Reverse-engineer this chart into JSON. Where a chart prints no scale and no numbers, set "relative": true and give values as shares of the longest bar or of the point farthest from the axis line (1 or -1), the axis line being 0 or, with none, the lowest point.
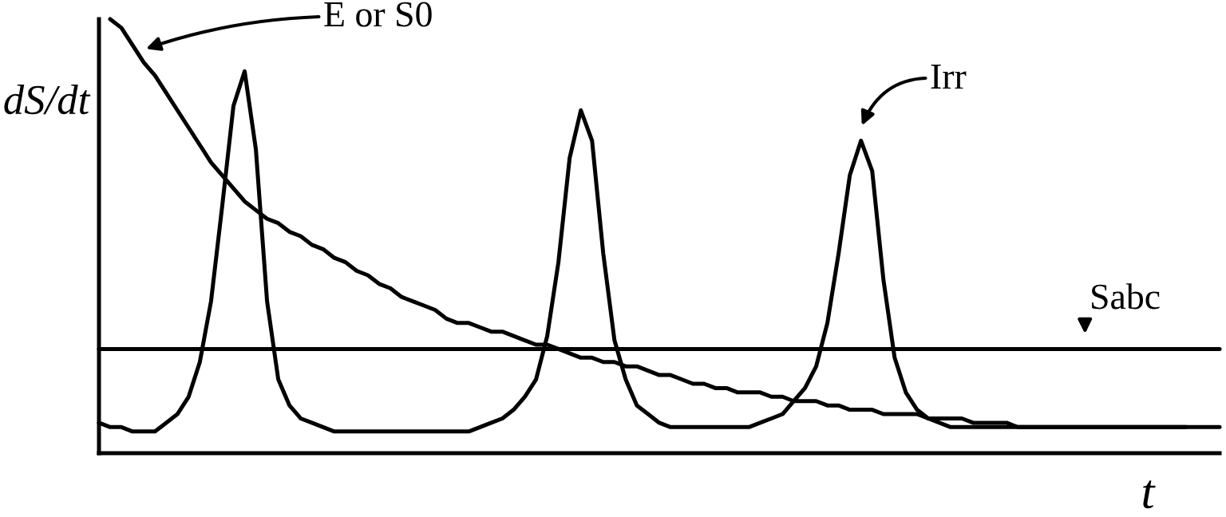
{
  "chart_data": {
    "type": "line",
    "relative": true,
    "ylabel": "dS/dt",
    "xlabel": "t",
    "legend": "top",
    "grid": false,
    "categories": [
      null,
      null,
      null,
      null,
      null,
      null,
      null,
      null,
      null,
      null,
      null,
      null,
      null,
      null,
      null,
      null,
      null,
      null,
      null,
      null,
      null,
      null,
      null,
      null,
      null,
      null,
      null,
      null,
      null,
      null,
      null,
      null,
      null,
      null,
      null,
      null,
      null,
      null,
      null,
      null,
      null,
      null,
      null,
      null,
      null,
      null,
      null,
      null,
      null,
      null,
      null,
      null,
      null,
      null,
      null,
      null,
      null,
      null,
      null,
      null,
      null,
      null,
      null,
      null,
      null,
      null,
      null,
      null,
      null,
      null,
      null,
      null,
      null,
      null,
      null,
      null,
      null,
      null,
      null,
      null,
      null,
      null,
      null,
      null,
      null,
      null,
      null,
      null,
      null,
      null,
      null,
      null,
      null,
      null,
      null,
      null,
      null,
      null,
      null,
      null,
      null
    ],
    "series": [
      {
        "name": "E or S0",
        "color": "#000000",
        "values": [
          null,
          1.0,
          0.98,
          0.94,
          0.9,
          0.87,
          0.83,
          0.79,
          0.75,
          0.71,
          0.67,
          0.64,
          0.61,
          0.58,
          0.56,
          0.54,
          0.53,
          0.51,
          0.5,
          0.48,
          0.47,
          0.45,
          0.44,
          0.42,
          0.41,
          0.39,
          0.38,
          0.36,
          0.35,
          0.34,
          0.33,
          0.31,
          0.3,
          0.3,
          0.29,
          0.28,
          0.28,
          0.27,
          0.26,
          0.25,
          0.25,
          0.24,
          0.23,
          0.22,
          0.22,
          0.21,
          0.21,
          0.2,
          0.2,
          0.19,
          0.18,
          0.18,
          0.17,
          0.16,
          0.16,
          0.15,
          0.15,
          0.14,
          0.14,
          0.14,
          0.13,
          0.13,
          0.12,
          0.12,
          0.12,
          0.11,
          0.11,
          0.1,
          0.1,
          0.1,
          0.09,
          0.09,
          0.09,
          0.09,
          0.08,
          0.08,
          0.08,
          0.08,
          0.07,
          0.07,
          0.07,
          0.07,
          0.06,
          0.06,
          0.06,
          0.06,
          0.06,
          0.06,
          0.06,
          0.06,
          0.06,
          0.06,
          0.06,
          0.06,
          0.06,
          0.06,
          0.06,
          0.06,
          null,
          null,
          null
        ]
      },
      {
        "name": "Irr",
        "color": "#000000",
        "values": [
          0.07,
          0.06,
          0.06,
          0.05,
          0.05,
          0.05,
          0.07,
          0.09,
          0.13,
          0.21,
          0.35,
          0.57,
          0.8,
          0.88,
          0.7,
          0.35,
          0.17,
          0.11,
          0.08,
          0.07,
          0.06,
          0.05,
          0.05,
          0.05,
          0.05,
          0.05,
          0.05,
          0.05,
          0.05,
          0.05,
          0.05,
          0.05,
          0.05,
          0.05,
          0.06,
          0.07,
          0.08,
          0.1,
          0.13,
          0.17,
          0.27,
          0.44,
          0.68,
          0.79,
          0.72,
          0.46,
          0.26,
          0.17,
          0.11,
          0.09,
          0.07,
          0.06,
          0.06,
          0.06,
          0.06,
          0.06,
          0.06,
          0.06,
          0.06,
          0.07,
          0.08,
          0.09,
          0.12,
          0.15,
          0.2,
          0.3,
          0.46,
          0.64,
          0.72,
          0.65,
          0.4,
          0.22,
          0.14,
          0.1,
          0.08,
          0.07,
          0.06,
          0.06,
          0.06,
          0.06,
          0.06,
          0.06,
          0.06,
          0.06,
          0.06,
          0.06,
          0.06,
          0.06,
          0.06,
          0.06,
          0.06,
          0.06,
          0.06,
          0.06,
          0.06,
          0.06,
          0.06,
          0.06,
          0.06,
          0.06,
          0.06
        ]
      },
      {
        "name": "Sabc",
        "color": "#000000",
        "values": [
          0.24,
          0.24,
          0.24,
          0.24,
          0.24,
          0.24,
          0.24,
          0.24,
          0.24,
          0.24,
          0.24,
          0.24,
          0.24,
          0.24,
          0.24,
          0.24,
          0.24,
          0.24,
          0.24,
          0.24,
          0.24,
          0.24,
          0.24,
          0.24,
          0.24,
          0.24,
          0.24,
          0.24,
          0.24,
          0.24,
          0.24,
          0.24,
          0.24,
          0.24,
          0.24,
          0.24,
          0.24,
          0.24,
          0.24,
          0.24,
          0.24,
          0.24,
          0.24,
          0.24,
          0.24,
          0.24,
          0.24,
          0.24,
          0.24,
          0.24,
          0.24,
          0.24,
          0.24,
          0.24,
          0.24,
          0.24,
          0.24,
          0.24,
          0.24,
          0.24,
          0.24,
          0.24,
          0.24,
          0.24,
          0.24,
          0.24,
          0.24,
          0.24,
          0.24,
          0.24,
          0.24,
          0.24,
          0.24,
          0.24,
          0.24,
          0.24,
          0.24,
          0.24,
          0.24,
          0.24,
          0.24,
          0.24,
          0.24,
          0.24,
          0.24,
          0.24,
          0.24,
          0.24,
          0.24,
          0.24,
          0.24,
          0.24,
          0.24,
          0.24,
          0.24,
          0.24,
          0.24,
          0.24,
          0.24,
          0.24,
          0.24
        ]
      }
    ]
  }
}
